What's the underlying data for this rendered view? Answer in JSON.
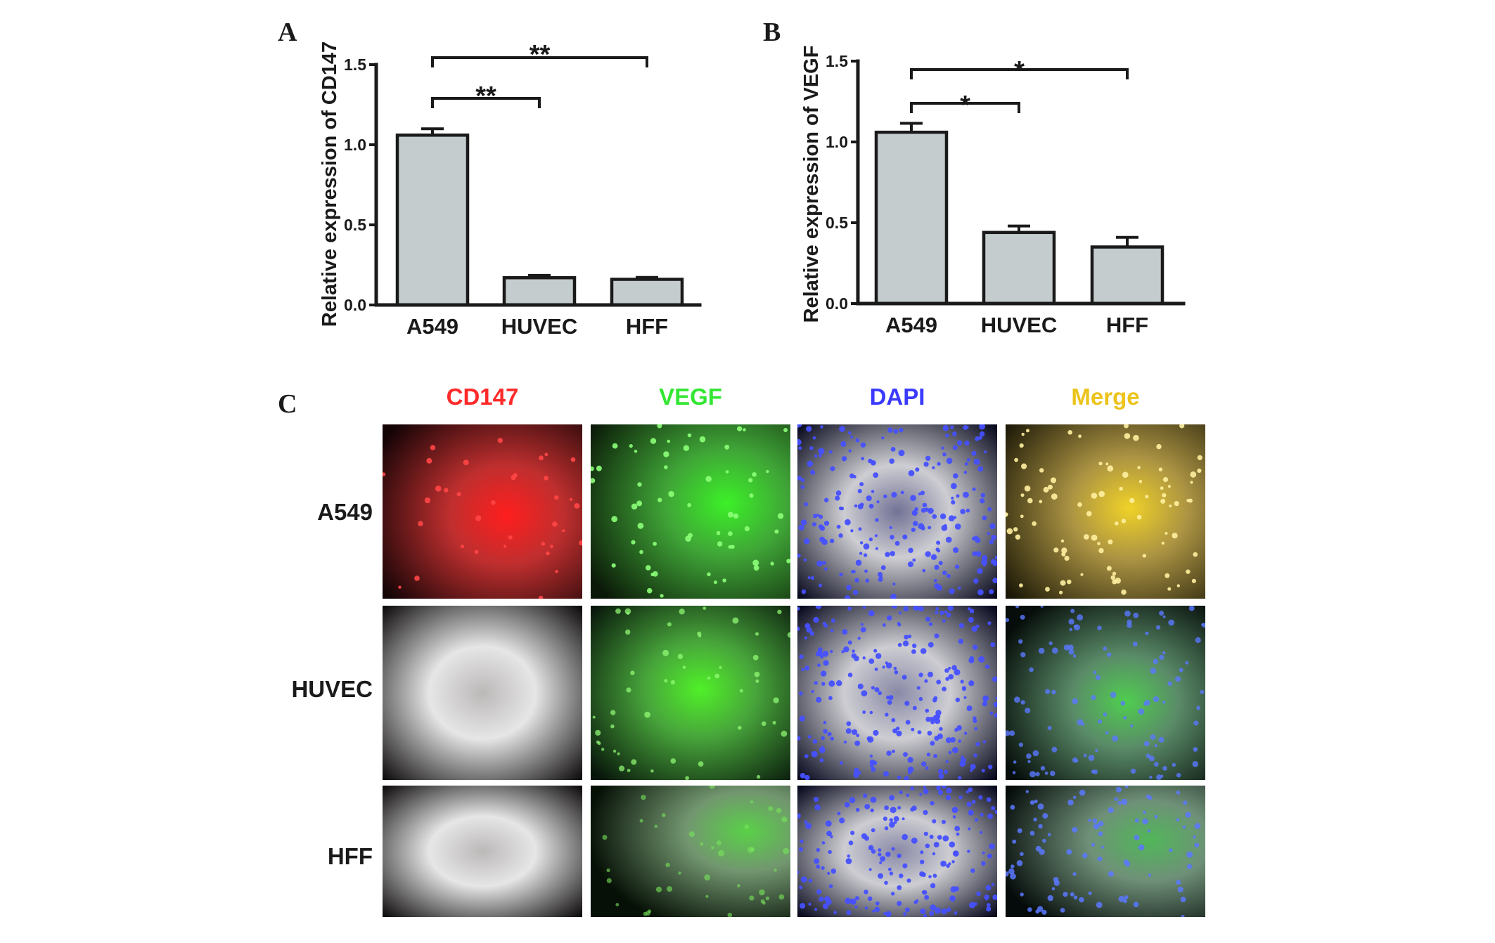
{
  "panels": {
    "a": "A",
    "b": "B",
    "c": "C"
  },
  "chart_data": [
    {
      "type": "bar",
      "panel": "A",
      "categories": [
        "A549",
        "HUVEC",
        "HFF"
      ],
      "values": [
        1.06,
        0.17,
        0.16
      ],
      "errors": [
        0.04,
        0.015,
        0.012
      ],
      "ylabel": "Relative expression of CD147",
      "xlabel": "",
      "ylim": [
        0,
        1.5
      ],
      "yticks": [
        "0.0",
        "0.5",
        "1.0",
        "1.5"
      ],
      "significance": [
        {
          "from": "A549",
          "to": "HUVEC",
          "label": "**"
        },
        {
          "from": "A549",
          "to": "HFF",
          "label": "**"
        }
      ],
      "bar_color": "#c4cccd"
    },
    {
      "type": "bar",
      "panel": "B",
      "categories": [
        "A549",
        "HUVEC",
        "HFF"
      ],
      "values": [
        1.06,
        0.44,
        0.35
      ],
      "errors": [
        0.055,
        0.04,
        0.06
      ],
      "ylabel": "Relative expression of VEGF",
      "xlabel": "",
      "ylim": [
        0,
        1.5
      ],
      "yticks": [
        "0.0",
        "0.5",
        "1.0",
        "1.5"
      ],
      "significance": [
        {
          "from": "A549",
          "to": "HUVEC",
          "label": "*"
        },
        {
          "from": "A549",
          "to": "HFF",
          "label": "*"
        }
      ],
      "bar_color": "#c4cccd"
    }
  ],
  "microscopy": {
    "columns": [
      {
        "label": "CD147",
        "color": "#ff2a2a"
      },
      {
        "label": "VEGF",
        "color": "#33e633"
      },
      {
        "label": "DAPI",
        "color": "#3a3aff"
      },
      {
        "label": "Merge",
        "color": "#ecc31a"
      }
    ],
    "rows": [
      "A549",
      "HUVEC",
      "HFF"
    ]
  }
}
